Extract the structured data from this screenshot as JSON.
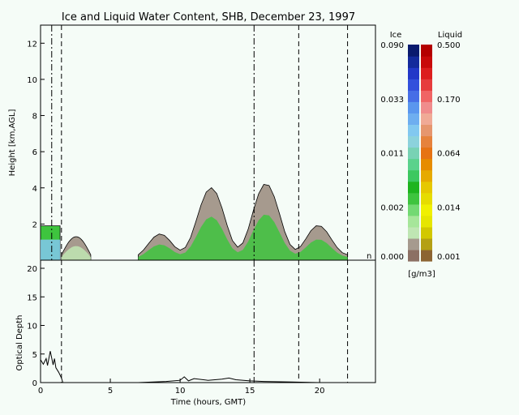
{
  "figure": {
    "title": "Ice and Liquid Water Content, SHB, December 23, 1997",
    "xlabel": "Time (hours, GMT)",
    "colorbar_units": "[g/m3]",
    "colorbar_ice_label": "Ice",
    "colorbar_liquid_label": "Liquid",
    "corner_mark": "n"
  },
  "colorbar": {
    "ice_colors": [
      "#8c7064",
      "#a69a8e",
      "#bfe6b3",
      "#a6e69a",
      "#73d973",
      "#3ec43e",
      "#1eb41e",
      "#3cc860",
      "#5ad28c",
      "#78d2b4",
      "#8cd2dc",
      "#82c8f0",
      "#6eaef0",
      "#5a96ee",
      "#466ee6",
      "#3250dc",
      "#2338c8",
      "#142a9c",
      "#0a1a6e"
    ],
    "liquid_colors": [
      "#8c6432",
      "#b4a014",
      "#d2c800",
      "#e6e600",
      "#f0f000",
      "#e6dc00",
      "#e6c800",
      "#e6aa00",
      "#e68c00",
      "#e67314",
      "#e6823c",
      "#e6966e",
      "#f0aa96",
      "#f08c8c",
      "#f06464",
      "#e63c3c",
      "#dc1e1e",
      "#c80a0a",
      "#b40000"
    ],
    "ice_ticks": [
      "0.000",
      "0.002",
      "0.011",
      "0.033",
      "0.090"
    ],
    "liquid_ticks": [
      "0.001",
      "0.014",
      "0.064",
      "0.170",
      "0.500"
    ]
  },
  "chart_data": [
    {
      "type": "heatmap",
      "title": "Ice and Liquid Water Content, SHB, December 23, 1997",
      "ylabel": "Height [km,AGL]",
      "xlabel": "",
      "xlim": [
        0,
        24
      ],
      "ylim": [
        0,
        13
      ],
      "xticks": [
        0,
        5,
        10,
        15,
        20
      ],
      "yticks": [
        2,
        4,
        6,
        8,
        10,
        12
      ],
      "dashed_vlines": [
        1.5,
        18.5,
        22
      ],
      "dashdot_vlines": [
        0.8,
        15.3
      ],
      "cloud_regions": [
        {
          "x": [
            0.0,
            1.4
          ],
          "top": [
            1.9,
            1.9
          ],
          "kind": "liquid-low"
        },
        {
          "x": [
            1.5,
            3.6
          ],
          "top": [
            0.3,
            1.3
          ],
          "kind": "ice-low"
        },
        {
          "x": [
            7.0,
            22.0
          ],
          "top": [
            0.2,
            4.5
          ],
          "kind": "ice-mixed"
        }
      ]
    },
    {
      "type": "line",
      "ylabel": "Optical Depth",
      "xlabel": "Time (hours, GMT)",
      "xlim": [
        0,
        24
      ],
      "ylim": [
        0,
        20
      ],
      "xticks": [
        0,
        5,
        10,
        15,
        20
      ],
      "yticks": [
        0,
        5,
        10,
        15,
        20
      ],
      "dashed_vlines": [
        1.5,
        18.5,
        22
      ],
      "dashdot_vlines": [
        15.3
      ],
      "x": [
        0,
        0.2,
        0.4,
        0.5,
        0.7,
        0.9,
        1.0,
        1.1,
        1.3,
        1.5,
        1.6,
        7.0,
        9.0,
        10.0,
        10.3,
        10.6,
        11.0,
        12.0,
        13.0,
        13.5,
        14.0,
        15.0,
        16.0,
        18.0,
        20.0,
        22.0
      ],
      "y": [
        4.0,
        3.2,
        4.2,
        3.0,
        5.5,
        3.1,
        4.2,
        2.6,
        1.8,
        0.8,
        0.0,
        0.0,
        0.2,
        0.4,
        1.0,
        0.3,
        0.7,
        0.4,
        0.6,
        0.8,
        0.5,
        0.3,
        0.2,
        0.1,
        0.0,
        0.0
      ]
    }
  ]
}
